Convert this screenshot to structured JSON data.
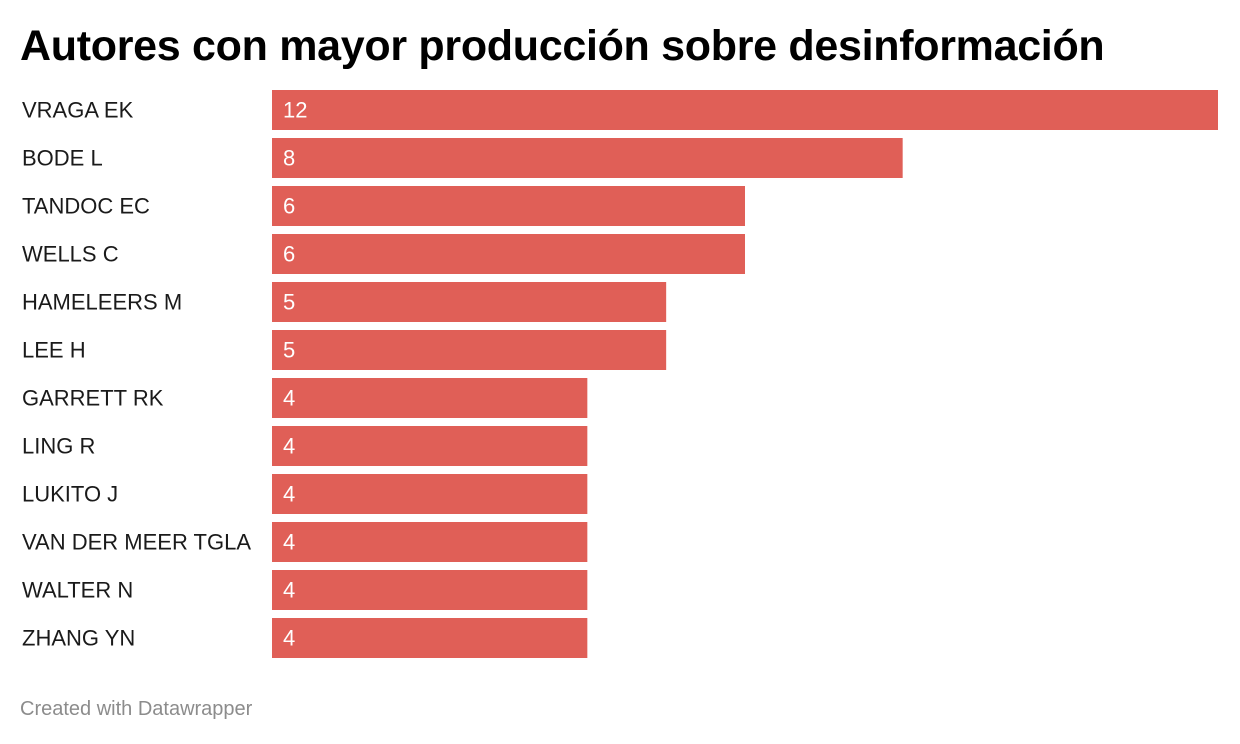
{
  "colors": {
    "bar": "#e05f57",
    "value_text": "#ffffff",
    "label_text": "#1a1a1a",
    "credit_text": "#8c8c8c"
  },
  "chart_data": {
    "type": "bar",
    "orientation": "horizontal",
    "title": "Autores con mayor producción sobre desinformación",
    "categories": [
      "VRAGA EK",
      "BODE L",
      "TANDOC EC",
      "WELLS C",
      "HAMELEERS M",
      "LEE H",
      "GARRETT RK",
      "LING R",
      "LUKITO J",
      "VAN DER MEER TGLA",
      "WALTER N",
      "ZHANG YN"
    ],
    "values": [
      12,
      8,
      6,
      6,
      5,
      5,
      4,
      4,
      4,
      4,
      4,
      4
    ],
    "xlim": [
      0,
      12
    ],
    "grid": false,
    "legend": "none"
  },
  "footer": {
    "credit": "Created with Datawrapper"
  }
}
